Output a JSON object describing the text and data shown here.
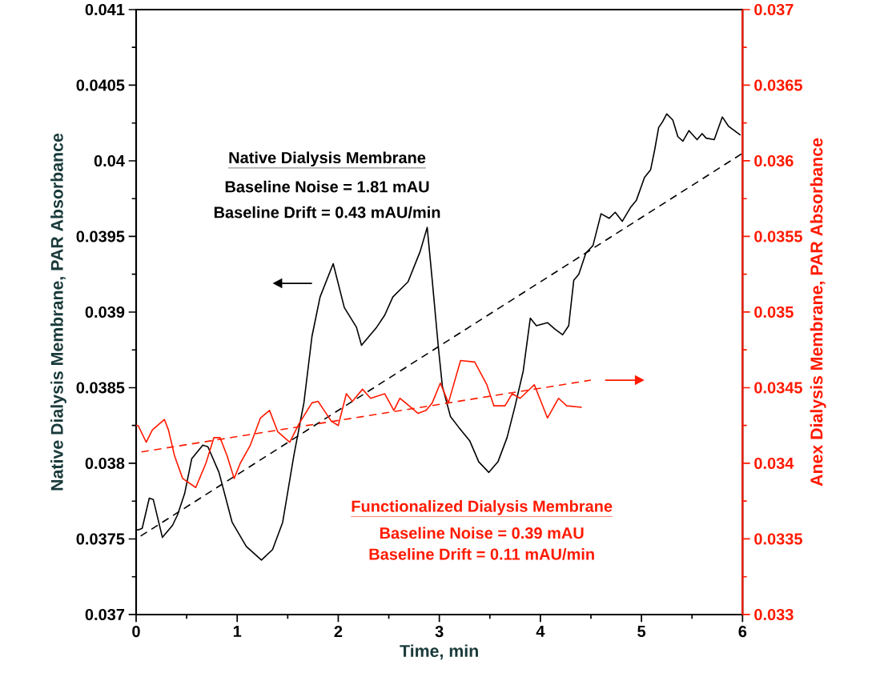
{
  "chart_data": {
    "type": "line",
    "xlabel": "Time, min",
    "ylabel": "Native Dialysis Membrane, PAR Absorbance",
    "y2label": "Anex Dialysis Membrane, PAR Absorbance",
    "xlim": [
      0,
      6
    ],
    "xticks": [
      0,
      1,
      2,
      3,
      4,
      5,
      6
    ],
    "ylim": [
      0.037,
      0.041
    ],
    "yticks": [
      0.037,
      0.0375,
      0.038,
      0.0385,
      0.039,
      0.0395,
      0.04,
      0.0405,
      0.041
    ],
    "y2lim": [
      0.033,
      0.037
    ],
    "y2ticks": [
      0.033,
      0.0335,
      0.034,
      0.0345,
      0.035,
      0.0355,
      0.036,
      0.0365,
      0.037
    ],
    "marker": "none",
    "annotations": [
      "Native Dialysis Membrane",
      "Baseline Noise = 1.81 mAU",
      "Baseline Drift = 0.43 mAU/min",
      "Functionalized Dialysis Membrane",
      "Baseline Noise = 0.39 mAU",
      "Baseline Drift = 0.11 mAU/min"
    ],
    "series": [
      {
        "color": "#000000",
        "line_style": "solid",
        "x": [
          0,
          0.02,
          0.06,
          0.13,
          0.17,
          0.26,
          0.36,
          0.41,
          0.48,
          0.55,
          0.66,
          0.71,
          0.82,
          0.95,
          1.09,
          1.24,
          1.35,
          1.45,
          1.56,
          1.66,
          1.74,
          1.82,
          1.95,
          2.06,
          2.18,
          2.23,
          2.38,
          2.46,
          2.54,
          2.69,
          2.81,
          2.88,
          2.93,
          2.99,
          3.03,
          3.11,
          3.19,
          3.3,
          3.39,
          3.49,
          3.58,
          3.67,
          3.75,
          3.83,
          3.9,
          3.96,
          4.07,
          4.14,
          4.22,
          4.28,
          4.33,
          4.38,
          4.45,
          4.52,
          4.6,
          4.68,
          4.74,
          4.81,
          4.89,
          4.95,
          5.03,
          5.09,
          5.13,
          5.17,
          5.21,
          5.25,
          5.31,
          5.36,
          5.41,
          5.47,
          5.55,
          5.6,
          5.64,
          5.72,
          5.8,
          5.86,
          5.98
        ],
        "values": [
          0.03756,
          0.03756,
          0.03757,
          0.03777,
          0.03776,
          0.03751,
          0.03759,
          0.03766,
          0.0378,
          0.03803,
          0.03812,
          0.03811,
          0.03794,
          0.03761,
          0.03745,
          0.03736,
          0.03743,
          0.03761,
          0.03805,
          0.0384,
          0.03884,
          0.0391,
          0.03932,
          0.03903,
          0.0389,
          0.03878,
          0.0389,
          0.03898,
          0.0391,
          0.0392,
          0.0394,
          0.03956,
          0.03921,
          0.03877,
          0.03851,
          0.03831,
          0.03824,
          0.03815,
          0.03801,
          0.03794,
          0.03801,
          0.03817,
          0.03838,
          0.03861,
          0.03896,
          0.03891,
          0.03893,
          0.03889,
          0.03885,
          0.03891,
          0.03921,
          0.03925,
          0.03939,
          0.03944,
          0.03965,
          0.03962,
          0.03966,
          0.0396,
          0.03969,
          0.03974,
          0.03989,
          0.03994,
          0.04007,
          0.04022,
          0.04026,
          0.04031,
          0.04027,
          0.04016,
          0.04013,
          0.0402,
          0.04014,
          0.04018,
          0.04015,
          0.04014,
          0.04029,
          0.04023,
          0.04017
        ]
      },
      {
        "color": "#000000",
        "line_style": "dashed",
        "x": [
          0,
          6
        ],
        "values": [
          0.0375,
          0.04005
        ]
      },
      {
        "color": "#ff1a00",
        "line_style": "solid",
        "axis": "y2",
        "x": [
          0,
          0.02,
          0.1,
          0.16,
          0.28,
          0.32,
          0.38,
          0.46,
          0.59,
          0.69,
          0.77,
          0.83,
          0.9,
          0.97,
          1.03,
          1.13,
          1.23,
          1.32,
          1.4,
          1.52,
          1.61,
          1.74,
          1.8,
          1.88,
          1.93,
          2.0,
          2.08,
          2.14,
          2.24,
          2.32,
          2.46,
          2.55,
          2.61,
          2.72,
          2.79,
          2.87,
          2.93,
          3.01,
          3.09,
          3.21,
          3.35,
          3.47,
          3.54,
          3.65,
          3.72,
          3.8,
          3.94,
          4.07,
          4.18,
          4.26,
          4.41
        ],
        "values": [
          0.03425,
          0.03425,
          0.03414,
          0.03422,
          0.03429,
          0.03422,
          0.03405,
          0.0339,
          0.03384,
          0.034,
          0.03417,
          0.03417,
          0.03405,
          0.0339,
          0.034,
          0.03412,
          0.0343,
          0.03435,
          0.03421,
          0.03414,
          0.03426,
          0.0344,
          0.03441,
          0.03433,
          0.03428,
          0.03425,
          0.03446,
          0.03441,
          0.03449,
          0.03443,
          0.03446,
          0.03435,
          0.03443,
          0.03437,
          0.03433,
          0.03435,
          0.0344,
          0.03453,
          0.0344,
          0.03468,
          0.03467,
          0.03452,
          0.03438,
          0.03438,
          0.03446,
          0.03443,
          0.03452,
          0.0343,
          0.03443,
          0.03438,
          0.03437
        ]
      },
      {
        "color": "#ff1a00",
        "line_style": "dashed",
        "axis": "y2",
        "x": [
          0,
          4.5
        ],
        "values": [
          0.03407,
          0.03455
        ]
      }
    ]
  }
}
